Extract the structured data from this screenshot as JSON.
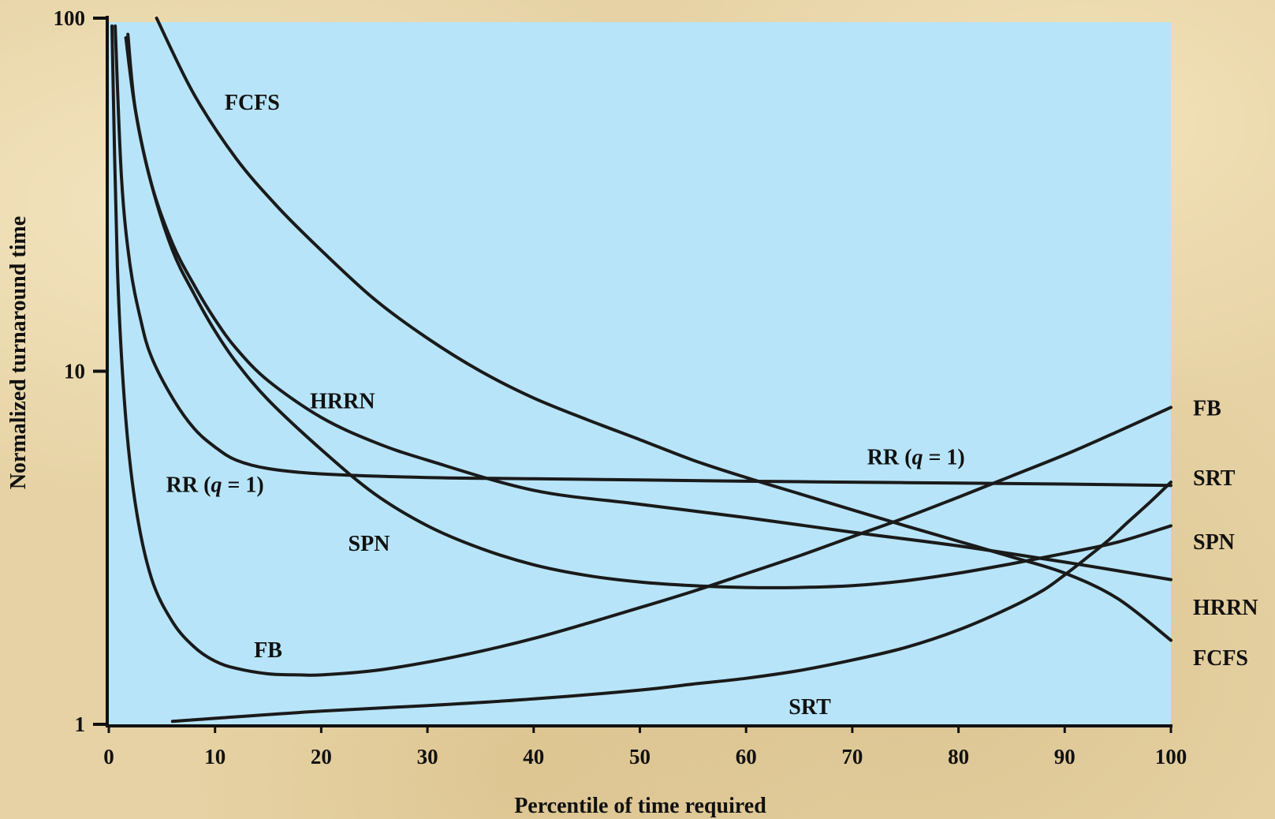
{
  "chart_data": {
    "type": "line",
    "title": "",
    "xlabel": "Percentile of time required",
    "ylabel": "Normalized turnaround time",
    "xlim": [
      0,
      100
    ],
    "ylim": [
      1,
      100
    ],
    "y_scale": "log",
    "grid": false,
    "x_ticks": [
      "0",
      "10",
      "20",
      "30",
      "40",
      "50",
      "60",
      "70",
      "80",
      "90",
      "100"
    ],
    "y_ticks": [
      "1",
      "10",
      "100"
    ],
    "plot_background": "#b7e4f8",
    "series": [
      {
        "name": "FCFS",
        "x": [
          4.5,
          8,
          12,
          16,
          20,
          25,
          30,
          35,
          40,
          45,
          50,
          55,
          60,
          65,
          70,
          75,
          80,
          85,
          90,
          95,
          100
        ],
        "y": [
          100,
          61,
          40,
          29,
          22,
          16,
          12.4,
          10,
          8.4,
          7.3,
          6.4,
          5.6,
          5.0,
          4.5,
          4.05,
          3.65,
          3.3,
          2.98,
          2.68,
          2.27,
          1.73
        ]
      },
      {
        "name": "HRRN",
        "x": [
          1.6,
          2.5,
          4,
          6,
          8,
          10,
          12,
          15,
          20,
          25,
          30,
          40,
          50,
          60,
          70,
          80,
          90,
          100
        ],
        "y": [
          88,
          55,
          34,
          23,
          17.6,
          14,
          11.6,
          9.4,
          7.4,
          6.3,
          5.6,
          4.6,
          4.2,
          3.85,
          3.5,
          3.2,
          2.88,
          2.57
        ]
      },
      {
        "name": "SPN",
        "x": [
          1.8,
          2.5,
          4,
          6,
          8,
          10,
          12,
          15,
          20,
          25,
          30,
          35,
          40,
          45,
          50,
          55,
          60,
          65,
          70,
          75,
          80,
          85,
          90,
          95,
          100
        ],
        "y": [
          90,
          55,
          34,
          22,
          16.6,
          13,
          10.6,
          8.3,
          6.0,
          4.5,
          3.65,
          3.15,
          2.83,
          2.64,
          2.53,
          2.47,
          2.44,
          2.44,
          2.47,
          2.55,
          2.68,
          2.85,
          3.05,
          3.28,
          3.65
        ]
      },
      {
        "name": "RR (q = 1)",
        "x": [
          0.6,
          1.2,
          2,
          3,
          4,
          6,
          8,
          10,
          12,
          15,
          20,
          30,
          40,
          50,
          60,
          70,
          80,
          90,
          100
        ],
        "y": [
          95,
          35,
          20,
          14,
          11,
          8.4,
          6.9,
          6.1,
          5.6,
          5.3,
          5.12,
          5.0,
          4.96,
          4.92,
          4.88,
          4.85,
          4.82,
          4.79,
          4.75
        ]
      },
      {
        "name": "FB",
        "x": [
          0.3,
          0.8,
          1.5,
          2.5,
          4,
          6,
          8,
          10,
          12,
          15,
          18,
          20,
          25,
          30,
          35,
          40,
          45,
          50,
          55,
          60,
          65,
          70,
          75,
          80,
          85,
          90,
          95,
          100
        ],
        "y": [
          95,
          20,
          8,
          4.2,
          2.6,
          1.95,
          1.66,
          1.51,
          1.44,
          1.39,
          1.38,
          1.38,
          1.42,
          1.5,
          1.61,
          1.75,
          1.93,
          2.14,
          2.38,
          2.67,
          3.0,
          3.4,
          3.85,
          4.4,
          5.05,
          5.8,
          6.75,
          7.9
        ]
      },
      {
        "name": "SRT",
        "x": [
          6,
          10,
          20,
          30,
          40,
          50,
          55,
          60,
          65,
          70,
          75,
          80,
          85,
          88,
          90,
          92,
          94,
          96,
          98,
          100
        ],
        "y": [
          1.02,
          1.04,
          1.09,
          1.13,
          1.18,
          1.25,
          1.3,
          1.35,
          1.42,
          1.52,
          1.65,
          1.85,
          2.15,
          2.4,
          2.65,
          2.95,
          3.3,
          3.75,
          4.25,
          4.85
        ]
      }
    ],
    "annotations": [
      {
        "text": "FCFS",
        "x": 13.5,
        "y": 55
      },
      {
        "text": "HRRN",
        "x": 22,
        "y": 7.85
      },
      {
        "text": "RR (q = 1)",
        "x": 10,
        "y": 4.55
      },
      {
        "text": "SPN",
        "x": 24.5,
        "y": 3.1
      },
      {
        "text": "FB",
        "x": 15,
        "y": 1.55
      },
      {
        "text": "SRT",
        "x": 66,
        "y": 1.07
      },
      {
        "text": "RR (q = 1)",
        "x": 76,
        "y": 5.45
      }
    ],
    "legend": {
      "placement": "right",
      "entries": [
        {
          "text": "FB",
          "y": 7.9
        },
        {
          "text": "SRT",
          "y": 5.0
        },
        {
          "text": "SPN",
          "y": 3.3
        },
        {
          "text": "HRRN",
          "y": 2.15
        },
        {
          "text": "FCFS",
          "y": 1.55
        }
      ]
    }
  }
}
